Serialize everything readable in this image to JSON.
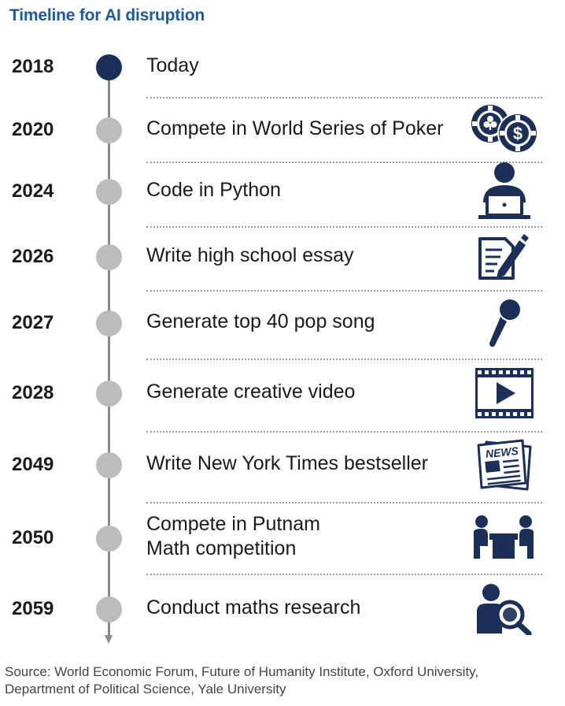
{
  "title": "Timeline for AI disruption",
  "events": [
    {
      "year": "2018",
      "lines": [
        "Today"
      ],
      "icon": "none",
      "current": true
    },
    {
      "year": "2020",
      "lines": [
        "Compete in World Series of Poker"
      ],
      "icon": "poker-chips-icon"
    },
    {
      "year": "2024",
      "lines": [
        "Code in Python"
      ],
      "icon": "person-laptop-icon"
    },
    {
      "year": "2026",
      "lines": [
        "Write high school essay"
      ],
      "icon": "document-pen-icon"
    },
    {
      "year": "2027",
      "lines": [
        "Generate top 40 pop song"
      ],
      "icon": "microphone-icon"
    },
    {
      "year": "2028",
      "lines": [
        "Generate creative video"
      ],
      "icon": "video-play-icon"
    },
    {
      "year": "2049",
      "lines": [
        "Write New York Times bestseller"
      ],
      "icon": "newspaper-icon",
      "icon_text": "NEWS"
    },
    {
      "year": "2050",
      "lines": [
        "Compete in Putnam",
        "Math competition"
      ],
      "icon": "people-table-icon"
    },
    {
      "year": "2059",
      "lines": [
        "Conduct maths research"
      ],
      "icon": "person-magnifier-icon"
    }
  ],
  "source_lines": [
    "Source: World Economic Forum, Future of Humanity Institute, Oxford University,",
    "Department of Political Science, Yale University"
  ],
  "colors": {
    "title": "#1f5a96",
    "icon": "#1b2f57",
    "current_dot": "#1b2f57",
    "dot": "#bcbcbc",
    "axis": "#8a8a8a"
  }
}
